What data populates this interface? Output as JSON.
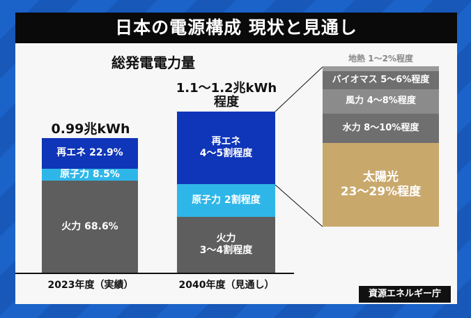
{
  "title": "日本の電源構成 現状と見通し",
  "source": "資源エネルギー庁",
  "chart_data": {
    "type": "bar",
    "stacked": true,
    "title": "総発電電力量",
    "categories": [
      "2023年度（実績）",
      "2040年度（見通し）"
    ],
    "totals": [
      "0.99兆kWh",
      "1.1～1.2兆kWh\n程度"
    ],
    "series": [
      {
        "name": "火力",
        "values": [
          68.6,
          35
        ],
        "labels": [
          "火力 68.6%",
          "火力\n3～4割程度"
        ],
        "color": "#5e5e5e"
      },
      {
        "name": "原子力",
        "values": [
          8.5,
          20
        ],
        "labels": [
          "原子力 8.5%",
          "原子力 2割程度"
        ],
        "color": "#2fb6e8"
      },
      {
        "name": "再エネ",
        "values": [
          22.9,
          45
        ],
        "labels": [
          "再エネ 22.9%",
          "再エネ\n4～5割程度"
        ],
        "color": "#0f35b8"
      }
    ],
    "renewable_breakdown_2040": [
      {
        "name": "太陽光",
        "label": "太陽光\n23～29%程度",
        "range": [
          23,
          29
        ],
        "color": "#c9a86c"
      },
      {
        "name": "水力",
        "label": "水力 8～10%程度",
        "range": [
          8,
          10
        ],
        "color": "#6f6f6f"
      },
      {
        "name": "風力",
        "label": "風力 4～8%程度",
        "range": [
          4,
          8
        ],
        "color": "#8b8b8b"
      },
      {
        "name": "バイオマス",
        "label": "バイオマス 5～6%程度",
        "range": [
          5,
          6
        ],
        "color": "#6f6f6f"
      },
      {
        "name": "地熱",
        "label": "地熱 1～2%程度",
        "range": [
          1,
          2
        ],
        "color": "#9a9a9a"
      }
    ]
  }
}
